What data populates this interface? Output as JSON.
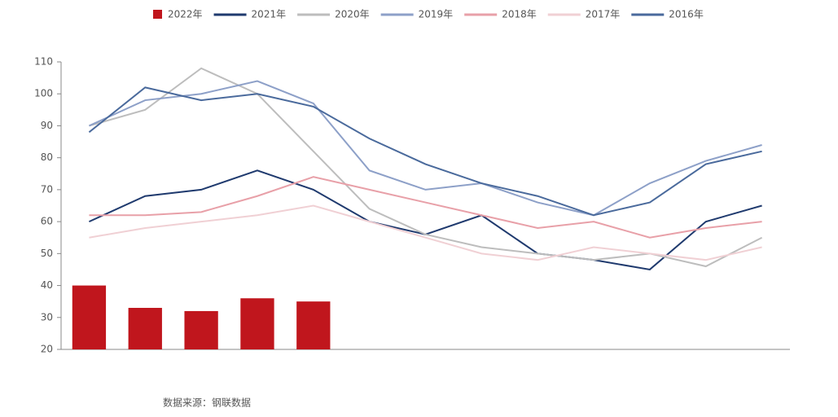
{
  "chart_data": {
    "type": "line",
    "categories": [
      null,
      null,
      null,
      null,
      null,
      null,
      null,
      null,
      null,
      null,
      null,
      null,
      null
    ],
    "ylim": [
      20,
      110
    ],
    "yticks": [
      20,
      30,
      40,
      50,
      60,
      70,
      80,
      90,
      100,
      110
    ],
    "legend": "top",
    "series": [
      {
        "name": "2022年",
        "type": "bar",
        "color": "#c0161d",
        "values": [
          40,
          33,
          32,
          36,
          35,
          null,
          null,
          null,
          null,
          null,
          null,
          null,
          null
        ]
      },
      {
        "name": "2021年",
        "color": "#1f3a6e",
        "values": [
          60,
          68,
          70,
          76,
          70,
          60,
          56,
          62,
          50,
          48,
          45,
          60,
          65
        ]
      },
      {
        "name": "2020年",
        "color": "#bdbdbd",
        "values": [
          90,
          95,
          108,
          100,
          82,
          64,
          56,
          52,
          50,
          48,
          50,
          46,
          55
        ]
      },
      {
        "name": "2019年",
        "color": "#8da0c8",
        "values": [
          90,
          98,
          100,
          104,
          97,
          76,
          70,
          72,
          66,
          62,
          72,
          79,
          84
        ]
      },
      {
        "name": "2018年",
        "color": "#e8a0a8",
        "values": [
          62,
          62,
          63,
          68,
          74,
          70,
          66,
          62,
          58,
          60,
          55,
          58,
          60
        ]
      },
      {
        "name": "2017年",
        "color": "#f0d0d4",
        "values": [
          55,
          58,
          60,
          62,
          65,
          60,
          55,
          50,
          48,
          52,
          50,
          48,
          52
        ]
      },
      {
        "name": "2016年",
        "color": "#4a6a9c",
        "values": [
          88,
          102,
          98,
          100,
          96,
          86,
          78,
          72,
          68,
          62,
          66,
          78,
          82
        ]
      }
    ],
    "source": "数据来源：钢联数据"
  }
}
